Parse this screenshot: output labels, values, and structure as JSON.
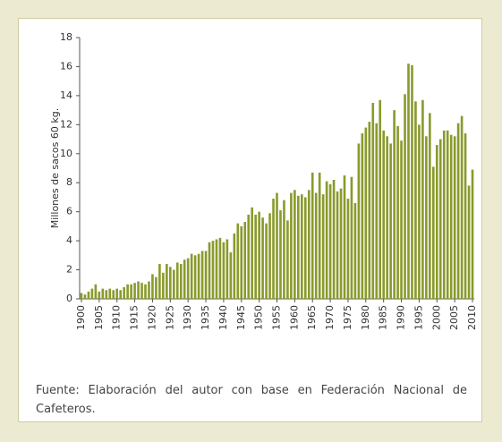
{
  "chart_data": {
    "type": "bar",
    "y_label": "Millones de sacos 60 kg.",
    "source": "Fuente: Elaboración del autor con base en Federación Nacional de Cafeteros.",
    "color": "#8a9a2c",
    "x": [
      1900,
      1901,
      1902,
      1903,
      1904,
      1905,
      1906,
      1907,
      1908,
      1909,
      1910,
      1911,
      1912,
      1913,
      1914,
      1915,
      1916,
      1917,
      1918,
      1919,
      1920,
      1921,
      1922,
      1923,
      1924,
      1925,
      1926,
      1927,
      1928,
      1929,
      1930,
      1931,
      1932,
      1933,
      1934,
      1935,
      1936,
      1937,
      1938,
      1939,
      1940,
      1941,
      1942,
      1943,
      1944,
      1945,
      1946,
      1947,
      1948,
      1949,
      1950,
      1951,
      1952,
      1953,
      1954,
      1955,
      1956,
      1957,
      1958,
      1959,
      1960,
      1961,
      1962,
      1963,
      1964,
      1965,
      1966,
      1967,
      1968,
      1969,
      1970,
      1971,
      1972,
      1973,
      1974,
      1975,
      1976,
      1977,
      1978,
      1979,
      1980,
      1981,
      1982,
      1983,
      1984,
      1985,
      1986,
      1987,
      1988,
      1989,
      1990,
      1991,
      1992,
      1993,
      1994,
      1995,
      1996,
      1997,
      1998,
      1999,
      2000,
      2001,
      2002,
      2003,
      2004,
      2005,
      2006,
      2007,
      2008,
      2009,
      2010
    ],
    "values": [
      0.4,
      0.3,
      0.5,
      0.7,
      1.0,
      0.5,
      0.7,
      0.6,
      0.7,
      0.6,
      0.7,
      0.6,
      0.8,
      1.0,
      1.0,
      1.1,
      1.2,
      1.1,
      1.0,
      1.2,
      1.7,
      1.5,
      2.4,
      1.8,
      2.4,
      2.2,
      2.0,
      2.5,
      2.4,
      2.7,
      2.8,
      3.1,
      3.0,
      3.1,
      3.3,
      3.3,
      3.9,
      4.0,
      4.1,
      4.2,
      3.9,
      4.1,
      3.2,
      4.5,
      5.2,
      5.0,
      5.3,
      5.8,
      6.3,
      5.8,
      6.0,
      5.6,
      5.2,
      5.9,
      6.9,
      7.3,
      6.1,
      6.8,
      5.4,
      7.3,
      7.5,
      7.1,
      7.2,
      7.0,
      7.5,
      8.7,
      7.3,
      8.7,
      7.2,
      8.1,
      7.9,
      8.2,
      7.4,
      7.6,
      8.5,
      6.9,
      8.4,
      6.6,
      10.7,
      11.4,
      11.8,
      12.2,
      13.5,
      12.1,
      13.7,
      11.6,
      11.2,
      10.7,
      13.0,
      11.9,
      10.9,
      14.1,
      16.2,
      16.1,
      13.6,
      12.0,
      13.7,
      11.2,
      12.8,
      9.1,
      10.6,
      11.0,
      11.6,
      11.6,
      11.3,
      11.2,
      12.1,
      12.6,
      11.4,
      7.8,
      8.9
    ],
    "xlim": [
      1899.5,
      2010.5
    ],
    "xticks": [
      1900,
      1905,
      1910,
      1915,
      1920,
      1925,
      1930,
      1935,
      1940,
      1945,
      1950,
      1955,
      1960,
      1965,
      1970,
      1975,
      1980,
      1985,
      1990,
      1995,
      2000,
      2005,
      2010
    ],
    "ylim": [
      0,
      18
    ],
    "yticks": [
      0,
      2,
      4,
      6,
      8,
      10,
      12,
      14,
      16,
      18
    ]
  }
}
